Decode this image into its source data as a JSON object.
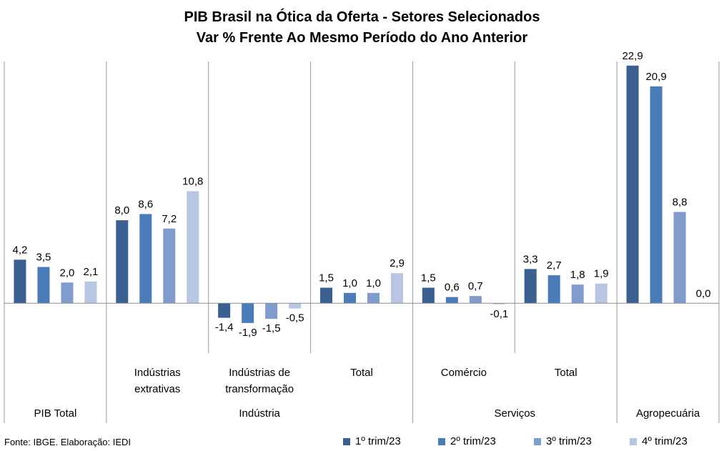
{
  "chart_data": {
    "type": "bar",
    "title": "PIB Brasil na Ótica da Oferta - Setores Selecionados",
    "subtitle": "Var % Frente Ao Mesmo Período do Ano Anterior",
    "categories": [
      "PIB Total",
      "Indústrias extrativas",
      "Indústrias de transformação",
      "Total",
      "Comércio",
      "Total",
      "Agropecuária"
    ],
    "category_lines": [
      [
        "",
        ""
      ],
      [
        "Indústrias",
        "extrativas"
      ],
      [
        "Indústrias de",
        "transformação"
      ],
      [
        "Total",
        ""
      ],
      [
        "Comércio",
        ""
      ],
      [
        "Total",
        ""
      ],
      [
        "",
        ""
      ]
    ],
    "groups": [
      {
        "label": "PIB Total",
        "from": 0,
        "to": 0
      },
      {
        "label": "Indústria",
        "from": 1,
        "to": 3
      },
      {
        "label": "Serviços",
        "from": 4,
        "to": 5
      },
      {
        "label": "Agropecuária",
        "from": 6,
        "to": 6
      }
    ],
    "series": [
      {
        "name": "1º trim/23",
        "color": "#3a5f91",
        "values": [
          4.2,
          8.0,
          -1.4,
          1.5,
          1.5,
          3.3,
          22.9
        ]
      },
      {
        "name": "2º trim/23",
        "color": "#4a7cba",
        "values": [
          3.5,
          8.6,
          -1.9,
          1.0,
          0.6,
          2.7,
          20.9
        ]
      },
      {
        "name": "3º trim/23",
        "color": "#7f9ccd",
        "values": [
          2.0,
          7.2,
          -1.5,
          1.0,
          0.7,
          1.8,
          8.8
        ]
      },
      {
        "name": "4º trim/23",
        "color": "#b8c6e3",
        "values": [
          2.1,
          10.8,
          -0.5,
          2.9,
          -0.1,
          1.9,
          0.0
        ]
      }
    ],
    "value_labels": [
      [
        "4,2",
        "8,0",
        "-1,4",
        "1,5",
        "1,5",
        "3,3",
        "22,9"
      ],
      [
        "3,5",
        "8,6",
        "-1,9",
        "1,0",
        "0,6",
        "2,7",
        "20,9"
      ],
      [
        "2,0",
        "7,2",
        "-1,5",
        "1,0",
        "0,7",
        "1,8",
        "8,8"
      ],
      [
        "2,1",
        "10,8",
        "-0,5",
        "2,9",
        "-0,1",
        "1,9",
        "0,0"
      ]
    ],
    "ylim": [
      -4.8,
      23.3
    ],
    "grid": false,
    "legend_position": "bottom-right"
  },
  "source": "Fonte: IBGE. Elaboração: IEDI"
}
